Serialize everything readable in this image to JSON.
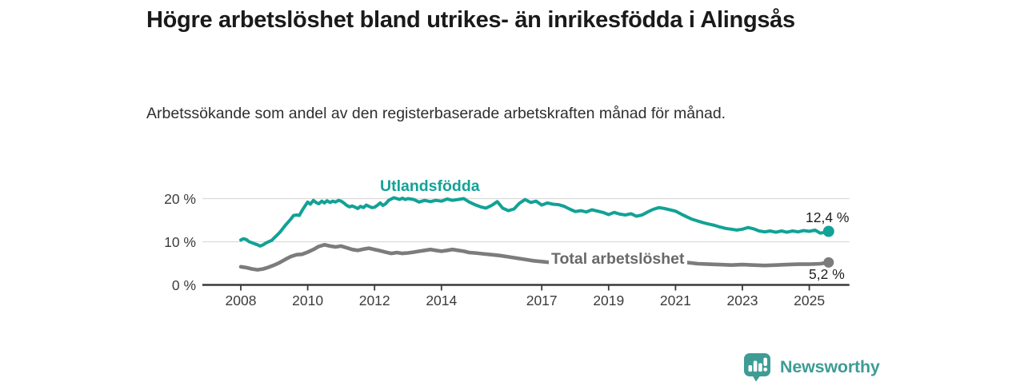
{
  "header": {
    "title": "Högre arbetslöshet bland utrikes- än inrikesfödda i Alingsås",
    "subtitle": "Arbetssökande som andel av den registerbaserade arbetskraften månad för månad."
  },
  "chart_data": {
    "type": "line",
    "title": "Högre arbetslöshet bland utrikes- än inrikesfödda i Alingsås",
    "xlabel": "",
    "ylabel": "",
    "xlim": [
      2006.85,
      2026.2
    ],
    "ylim": [
      0,
      22
    ],
    "grid": "horizontal",
    "grid_color": "#dbdbdb",
    "axis_color": "#3a3a3a",
    "y_ticks": [
      {
        "label": "0 %",
        "value": 0
      },
      {
        "label": "10 %",
        "value": 10
      },
      {
        "label": "20 %",
        "value": 20
      }
    ],
    "x_ticks": [
      {
        "label": "2008",
        "year": 2008
      },
      {
        "label": "2010",
        "year": 2010
      },
      {
        "label": "2012",
        "year": 2012
      },
      {
        "label": "2014",
        "year": 2014
      },
      {
        "label": "2017",
        "year": 2017
      },
      {
        "label": "2019",
        "year": 2019
      },
      {
        "label": "2021",
        "year": 2021
      },
      {
        "label": "2023",
        "year": 2023
      },
      {
        "label": "2025",
        "year": 2025
      }
    ],
    "series": [
      {
        "name": "Utlandsfödda",
        "color": "#12a296",
        "end_label": "12,4 %",
        "end_value": 12.4,
        "points": [
          [
            2008.0,
            10.4
          ],
          [
            2008.08,
            10.7
          ],
          [
            2008.17,
            10.5
          ],
          [
            2008.25,
            10.0
          ],
          [
            2008.33,
            9.8
          ],
          [
            2008.42,
            9.5
          ],
          [
            2008.5,
            9.3
          ],
          [
            2008.58,
            9.0
          ],
          [
            2008.67,
            9.3
          ],
          [
            2008.75,
            9.7
          ],
          [
            2008.83,
            10.0
          ],
          [
            2008.92,
            10.3
          ],
          [
            2009.0,
            10.9
          ],
          [
            2009.08,
            11.5
          ],
          [
            2009.17,
            12.2
          ],
          [
            2009.25,
            13.0
          ],
          [
            2009.33,
            13.8
          ],
          [
            2009.42,
            14.6
          ],
          [
            2009.5,
            15.3
          ],
          [
            2009.58,
            16.1
          ],
          [
            2009.67,
            16.2
          ],
          [
            2009.75,
            16.1
          ],
          [
            2009.83,
            17.2
          ],
          [
            2009.92,
            18.3
          ],
          [
            2010.0,
            19.2
          ],
          [
            2010.08,
            18.7
          ],
          [
            2010.17,
            19.6
          ],
          [
            2010.25,
            19.1
          ],
          [
            2010.33,
            18.8
          ],
          [
            2010.42,
            19.4
          ],
          [
            2010.5,
            19.0
          ],
          [
            2010.58,
            19.5
          ],
          [
            2010.67,
            19.1
          ],
          [
            2010.75,
            19.4
          ],
          [
            2010.83,
            19.2
          ],
          [
            2010.92,
            19.6
          ],
          [
            2011.0,
            19.4
          ],
          [
            2011.08,
            19.0
          ],
          [
            2011.17,
            18.4
          ],
          [
            2011.25,
            18.1
          ],
          [
            2011.33,
            18.3
          ],
          [
            2011.42,
            18.0
          ],
          [
            2011.5,
            17.7
          ],
          [
            2011.58,
            18.2
          ],
          [
            2011.67,
            17.9
          ],
          [
            2011.75,
            18.5
          ],
          [
            2011.83,
            18.2
          ],
          [
            2011.92,
            17.9
          ],
          [
            2012.0,
            18.0
          ],
          [
            2012.08,
            18.4
          ],
          [
            2012.17,
            19.0
          ],
          [
            2012.25,
            18.4
          ],
          [
            2012.33,
            18.8
          ],
          [
            2012.42,
            19.6
          ],
          [
            2012.5,
            19.9
          ],
          [
            2012.58,
            20.2
          ],
          [
            2012.67,
            20.0
          ],
          [
            2012.75,
            19.8
          ],
          [
            2012.83,
            20.1
          ],
          [
            2012.92,
            19.8
          ],
          [
            2013.0,
            20.0
          ],
          [
            2013.17,
            19.8
          ],
          [
            2013.33,
            19.2
          ],
          [
            2013.5,
            19.6
          ],
          [
            2013.67,
            19.3
          ],
          [
            2013.83,
            19.6
          ],
          [
            2014.0,
            19.4
          ],
          [
            2014.17,
            19.9
          ],
          [
            2014.33,
            19.6
          ],
          [
            2014.5,
            19.8
          ],
          [
            2014.67,
            20.0
          ],
          [
            2014.83,
            19.2
          ],
          [
            2015.0,
            18.6
          ],
          [
            2015.17,
            18.1
          ],
          [
            2015.33,
            17.8
          ],
          [
            2015.5,
            18.4
          ],
          [
            2015.67,
            19.3
          ],
          [
            2015.83,
            17.8
          ],
          [
            2016.0,
            17.2
          ],
          [
            2016.17,
            17.6
          ],
          [
            2016.33,
            18.9
          ],
          [
            2016.5,
            19.8
          ],
          [
            2016.67,
            19.1
          ],
          [
            2016.83,
            19.4
          ],
          [
            2017.0,
            18.5
          ],
          [
            2017.17,
            19.0
          ],
          [
            2017.33,
            18.7
          ],
          [
            2017.5,
            18.6
          ],
          [
            2017.67,
            18.2
          ],
          [
            2017.83,
            17.6
          ],
          [
            2018.0,
            17.0
          ],
          [
            2018.17,
            17.2
          ],
          [
            2018.33,
            16.9
          ],
          [
            2018.5,
            17.4
          ],
          [
            2018.67,
            17.1
          ],
          [
            2018.83,
            16.8
          ],
          [
            2019.0,
            16.3
          ],
          [
            2019.17,
            16.8
          ],
          [
            2019.33,
            16.4
          ],
          [
            2019.5,
            16.2
          ],
          [
            2019.67,
            16.5
          ],
          [
            2019.83,
            15.9
          ],
          [
            2020.0,
            16.2
          ],
          [
            2020.17,
            16.9
          ],
          [
            2020.33,
            17.5
          ],
          [
            2020.5,
            17.9
          ],
          [
            2020.67,
            17.7
          ],
          [
            2020.83,
            17.4
          ],
          [
            2021.0,
            17.1
          ],
          [
            2021.17,
            16.4
          ],
          [
            2021.33,
            15.8
          ],
          [
            2021.5,
            15.2
          ],
          [
            2021.67,
            14.8
          ],
          [
            2021.83,
            14.4
          ],
          [
            2022.0,
            14.1
          ],
          [
            2022.17,
            13.8
          ],
          [
            2022.33,
            13.4
          ],
          [
            2022.5,
            13.1
          ],
          [
            2022.67,
            12.9
          ],
          [
            2022.83,
            12.7
          ],
          [
            2023.0,
            12.9
          ],
          [
            2023.17,
            13.3
          ],
          [
            2023.33,
            13.0
          ],
          [
            2023.5,
            12.5
          ],
          [
            2023.67,
            12.3
          ],
          [
            2023.83,
            12.5
          ],
          [
            2024.0,
            12.2
          ],
          [
            2024.17,
            12.5
          ],
          [
            2024.33,
            12.2
          ],
          [
            2024.5,
            12.5
          ],
          [
            2024.67,
            12.3
          ],
          [
            2024.83,
            12.6
          ],
          [
            2025.0,
            12.4
          ],
          [
            2025.17,
            12.7
          ],
          [
            2025.33,
            12.0
          ],
          [
            2025.5,
            12.2
          ],
          [
            2025.58,
            12.4
          ]
        ]
      },
      {
        "name": "Total arbetslöshet",
        "color": "#7c7c7c",
        "label_color": "#696969",
        "end_label": "5,2 %",
        "end_value": 5.2,
        "points": [
          [
            2008.0,
            4.2
          ],
          [
            2008.17,
            4.0
          ],
          [
            2008.33,
            3.7
          ],
          [
            2008.5,
            3.5
          ],
          [
            2008.67,
            3.7
          ],
          [
            2008.83,
            4.1
          ],
          [
            2009.0,
            4.6
          ],
          [
            2009.17,
            5.2
          ],
          [
            2009.33,
            5.9
          ],
          [
            2009.5,
            6.6
          ],
          [
            2009.67,
            7.0
          ],
          [
            2009.83,
            7.1
          ],
          [
            2010.0,
            7.6
          ],
          [
            2010.17,
            8.2
          ],
          [
            2010.33,
            8.9
          ],
          [
            2010.5,
            9.3
          ],
          [
            2010.67,
            9.0
          ],
          [
            2010.83,
            8.8
          ],
          [
            2011.0,
            9.0
          ],
          [
            2011.17,
            8.6
          ],
          [
            2011.33,
            8.2
          ],
          [
            2011.5,
            8.0
          ],
          [
            2011.67,
            8.3
          ],
          [
            2011.83,
            8.5
          ],
          [
            2012.0,
            8.2
          ],
          [
            2012.17,
            7.9
          ],
          [
            2012.33,
            7.6
          ],
          [
            2012.5,
            7.3
          ],
          [
            2012.67,
            7.5
          ],
          [
            2012.83,
            7.3
          ],
          [
            2013.0,
            7.4
          ],
          [
            2013.17,
            7.6
          ],
          [
            2013.33,
            7.8
          ],
          [
            2013.5,
            8.0
          ],
          [
            2013.67,
            8.2
          ],
          [
            2013.83,
            8.0
          ],
          [
            2014.0,
            7.8
          ],
          [
            2014.17,
            8.0
          ],
          [
            2014.33,
            8.2
          ],
          [
            2014.5,
            8.0
          ],
          [
            2014.67,
            7.8
          ],
          [
            2014.83,
            7.5
          ],
          [
            2015.0,
            7.4
          ],
          [
            2015.25,
            7.2
          ],
          [
            2015.5,
            7.0
          ],
          [
            2015.75,
            6.8
          ],
          [
            2016.0,
            6.5
          ],
          [
            2016.25,
            6.2
          ],
          [
            2016.5,
            5.9
          ],
          [
            2016.75,
            5.6
          ],
          [
            2017.0,
            5.4
          ],
          [
            2017.25,
            5.2
          ],
          [
            2017.5,
            5.3
          ],
          [
            2017.75,
            5.1
          ],
          [
            2018.0,
            5.0
          ],
          [
            2018.33,
            5.1
          ],
          [
            2018.67,
            4.9
          ],
          [
            2019.0,
            5.0
          ],
          [
            2019.33,
            4.9
          ],
          [
            2019.67,
            5.0
          ],
          [
            2020.0,
            5.1
          ],
          [
            2020.33,
            5.6
          ],
          [
            2020.67,
            5.8
          ],
          [
            2021.0,
            5.6
          ],
          [
            2021.33,
            5.2
          ],
          [
            2021.67,
            4.9
          ],
          [
            2022.0,
            4.8
          ],
          [
            2022.33,
            4.7
          ],
          [
            2022.67,
            4.6
          ],
          [
            2023.0,
            4.7
          ],
          [
            2023.33,
            4.6
          ],
          [
            2023.67,
            4.5
          ],
          [
            2024.0,
            4.6
          ],
          [
            2024.33,
            4.7
          ],
          [
            2024.67,
            4.8
          ],
          [
            2025.0,
            4.8
          ],
          [
            2025.33,
            4.9
          ],
          [
            2025.58,
            5.2
          ]
        ]
      }
    ]
  },
  "branding": {
    "name": "Newsworthy",
    "icon": "newsworthy-speech-bubble-chart-icon",
    "color": "#3e9c95"
  }
}
